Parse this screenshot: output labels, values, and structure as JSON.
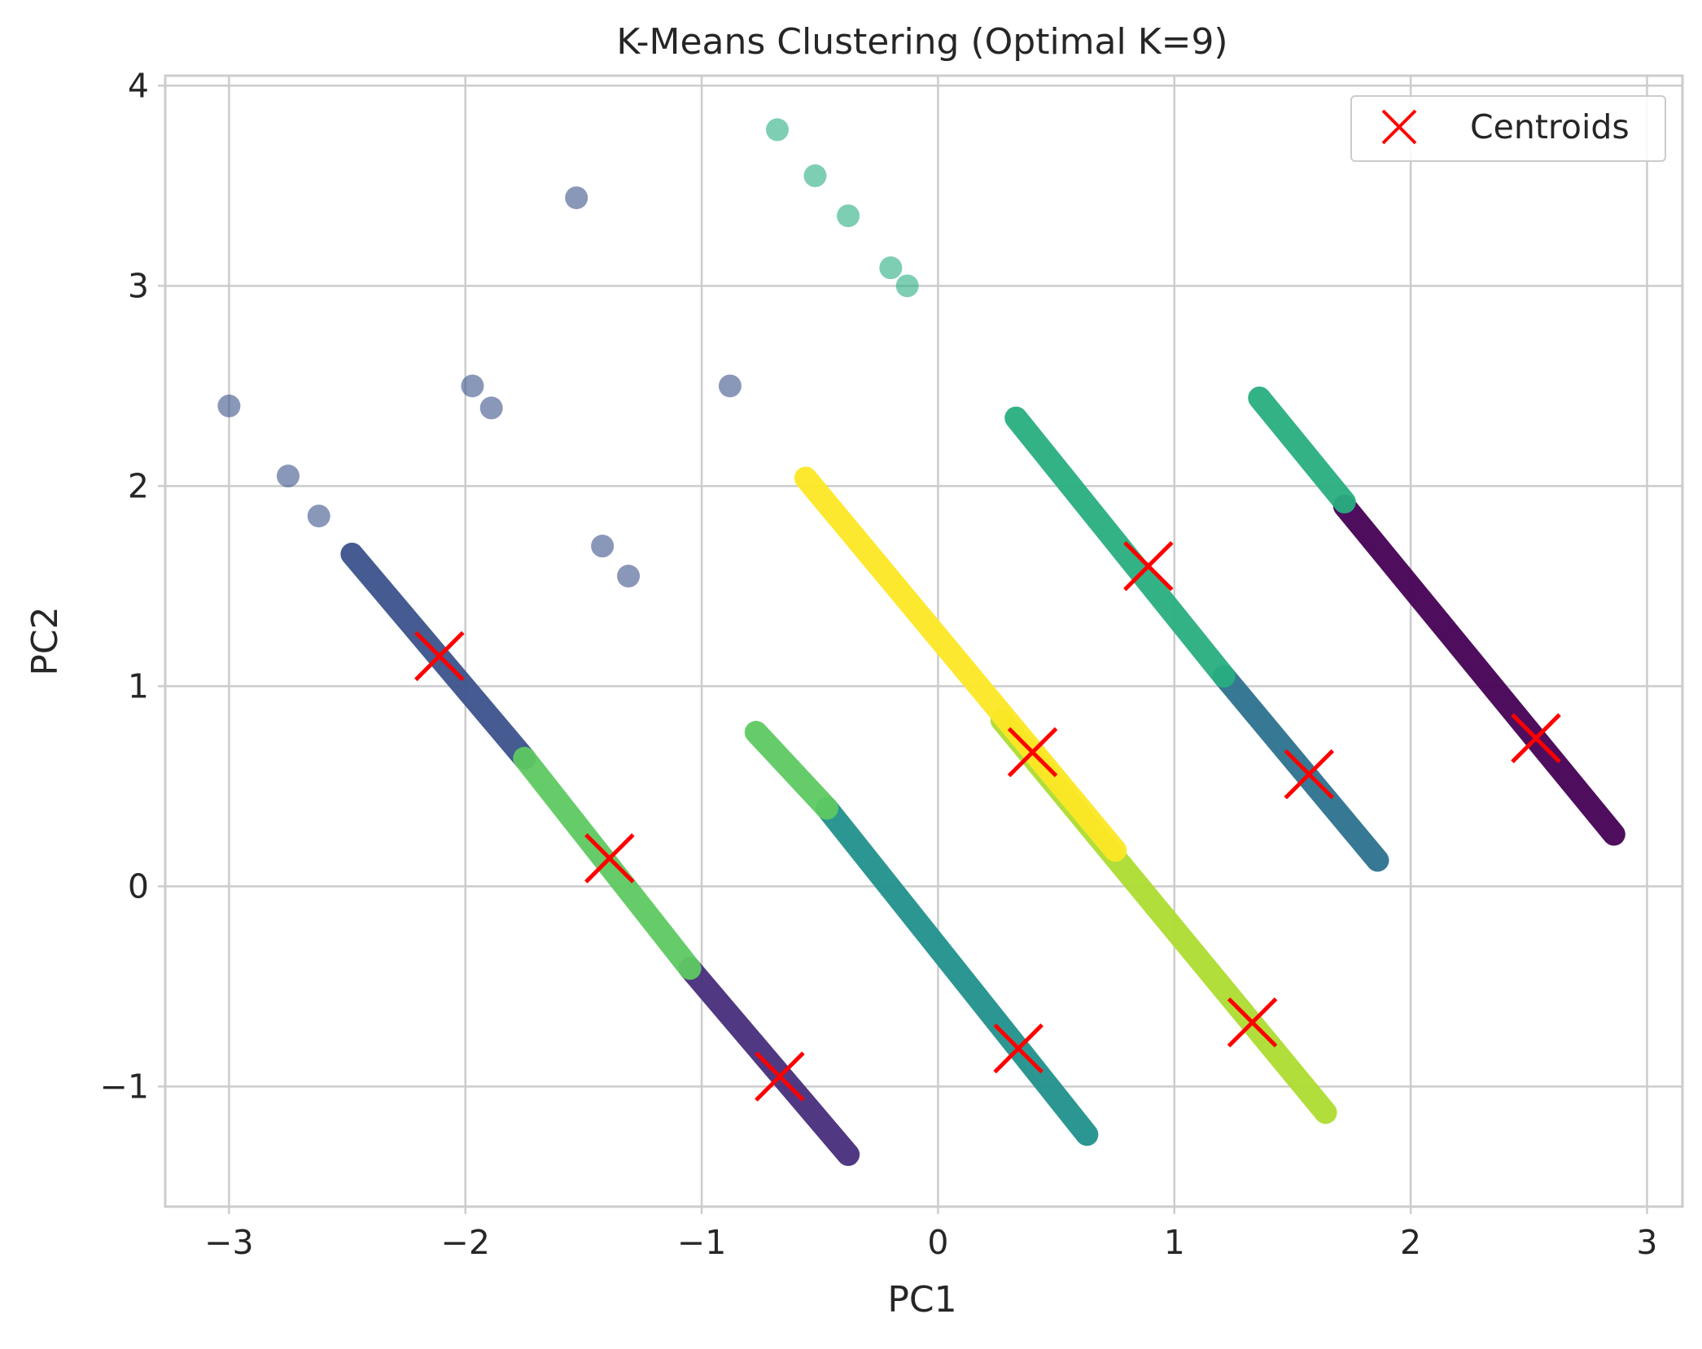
{
  "chart_data": {
    "type": "scatter",
    "title": "K-Means Clustering (Optimal K=9)",
    "xlabel": "PC1",
    "ylabel": "PC2",
    "xlim": [
      -3.27,
      3.15
    ],
    "ylim": [
      -1.6,
      4.05
    ],
    "xticks": [
      -3,
      -2,
      -1,
      0,
      1,
      2,
      3
    ],
    "xtick_labels": [
      "−3",
      "−2",
      "−1",
      "0",
      "1",
      "2",
      "3"
    ],
    "yticks": [
      -1,
      0,
      1,
      2,
      3,
      4
    ],
    "ytick_labels": [
      "−1",
      "0",
      "1",
      "2",
      "3",
      "4"
    ],
    "grid": true,
    "legend": {
      "position": "top-right",
      "entries": [
        {
          "label": "Centroids",
          "marker": "x",
          "color": "#ff0000"
        }
      ]
    },
    "clusters": [
      {
        "id": 0,
        "color": "#440154",
        "segments": [
          [
            1.72,
            1.9,
            2.86,
            0.26
          ]
        ]
      },
      {
        "id": 1,
        "color": "#472d7b",
        "segments": [
          [
            -1.05,
            -0.41,
            -0.38,
            -1.34
          ]
        ]
      },
      {
        "id": 2,
        "color": "#3b528b",
        "segments": [
          [
            -2.48,
            1.66,
            -1.75,
            0.64
          ]
        ],
        "points": [
          [
            -3.0,
            2.4
          ],
          [
            -2.75,
            2.05
          ],
          [
            -2.62,
            1.85
          ],
          [
            -1.53,
            3.44
          ],
          [
            -1.97,
            2.5
          ],
          [
            -1.89,
            2.39
          ],
          [
            -1.42,
            1.7
          ],
          [
            -1.31,
            1.55
          ],
          [
            -0.88,
            2.5
          ]
        ]
      },
      {
        "id": 3,
        "color": "#2c728e",
        "segments": [
          [
            1.21,
            1.05,
            1.86,
            0.13
          ]
        ]
      },
      {
        "id": 4,
        "color": "#21918c",
        "segments": [
          [
            -0.47,
            0.39,
            0.63,
            -1.24
          ]
        ]
      },
      {
        "id": 5,
        "color": "#28ae80",
        "segments": [
          [
            0.33,
            2.34,
            1.21,
            1.05
          ],
          [
            1.36,
            2.44,
            1.72,
            1.92
          ]
        ],
        "points": [
          [
            -0.68,
            3.78
          ],
          [
            -0.52,
            3.55
          ],
          [
            -0.38,
            3.35
          ],
          [
            -0.2,
            3.09
          ],
          [
            -0.13,
            3.0
          ]
        ]
      },
      {
        "id": 6,
        "color": "#5ec962",
        "segments": [
          [
            -1.75,
            0.64,
            -1.05,
            -0.41
          ],
          [
            -0.77,
            0.77,
            -0.47,
            0.39
          ]
        ]
      },
      {
        "id": 7,
        "color": "#addc30",
        "segments": [
          [
            0.27,
            0.83,
            1.64,
            -1.13
          ]
        ]
      },
      {
        "id": 8,
        "color": "#fde725",
        "segments": [
          [
            -0.56,
            2.04,
            0.75,
            0.18
          ]
        ]
      }
    ],
    "centroids": [
      {
        "cluster": 0,
        "x": 2.53,
        "y": 0.74
      },
      {
        "cluster": 1,
        "x": -0.67,
        "y": -0.95
      },
      {
        "cluster": 2,
        "x": -2.11,
        "y": 1.15
      },
      {
        "cluster": 3,
        "x": 1.57,
        "y": 0.56
      },
      {
        "cluster": 4,
        "x": 0.34,
        "y": -0.81
      },
      {
        "cluster": 5,
        "x": 0.89,
        "y": 1.6
      },
      {
        "cluster": 6,
        "x": -1.39,
        "y": 0.14
      },
      {
        "cluster": 7,
        "x": 1.33,
        "y": -0.68
      },
      {
        "cluster": 8,
        "x": 0.4,
        "y": 0.67
      }
    ]
  }
}
